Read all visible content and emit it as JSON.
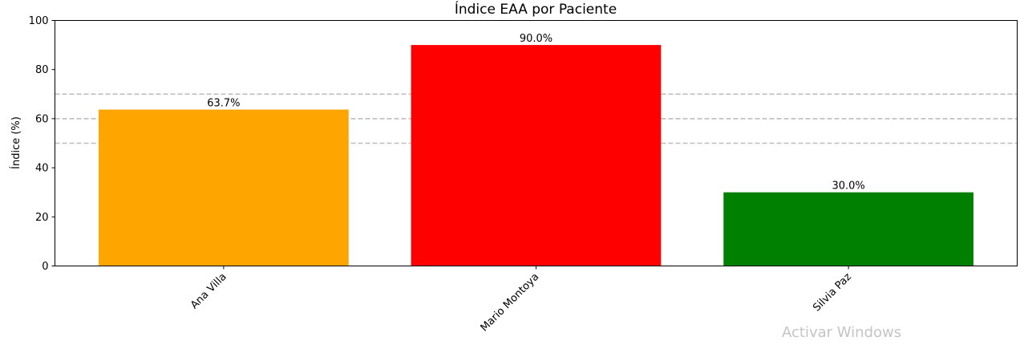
{
  "chart_data": {
    "type": "bar",
    "title": "Índice EAA por Paciente",
    "xlabel": "",
    "ylabel": "Índice (%)",
    "categories": [
      "Ana Villa",
      "Mario  Montoya",
      "Silvia Paz"
    ],
    "values": [
      63.7,
      90.0,
      30.0
    ],
    "value_labels": [
      "63.7%",
      "90.0%",
      "30.0%"
    ],
    "colors": [
      "#FFA500",
      "#FF0000",
      "#008000"
    ],
    "ylim": [
      0,
      100
    ],
    "yticks": [
      0,
      20,
      40,
      60,
      80,
      100
    ],
    "reference_lines": [
      50,
      60,
      70
    ],
    "reference_line_color": "#bdbdbd",
    "grid": false,
    "legend": "none"
  },
  "watermark": "Activar Windows"
}
